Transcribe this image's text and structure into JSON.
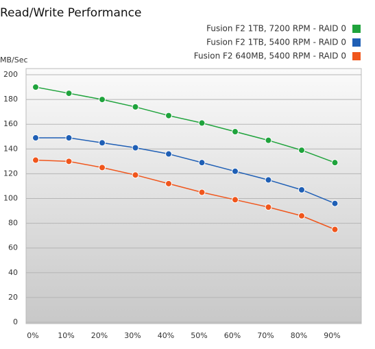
{
  "chart_data": {
    "type": "line",
    "title": "Read/Write Performance",
    "y_label": "MB/Sec",
    "categories": [
      "0%",
      "10%",
      "20%",
      "30%",
      "40%",
      "50%",
      "60%",
      "70%",
      "80%",
      "90%"
    ],
    "series": [
      {
        "name": "Fusion F2 1TB, 7200 RPM - RAID 0",
        "color": "#1fa33c",
        "values": [
          190,
          185,
          180,
          174,
          167,
          161,
          154,
          147,
          139,
          129
        ]
      },
      {
        "name": "Fusion F2 1TB, 5400 RPM - RAID 0",
        "color": "#1f5fb5",
        "values": [
          149,
          149,
          145,
          141,
          136,
          129,
          122,
          115,
          107,
          96
        ]
      },
      {
        "name": "Fusion F2 640MB, 5400 RPM - RAID 0",
        "color": "#f0561c",
        "values": [
          131,
          130,
          125,
          119,
          112,
          105,
          99,
          93,
          86,
          75
        ]
      }
    ],
    "ylim": [
      0,
      200
    ],
    "yticks": [
      0,
      20,
      40,
      60,
      80,
      100,
      120,
      140,
      160,
      180,
      200
    ],
    "grid": true,
    "legend": "top-right"
  }
}
